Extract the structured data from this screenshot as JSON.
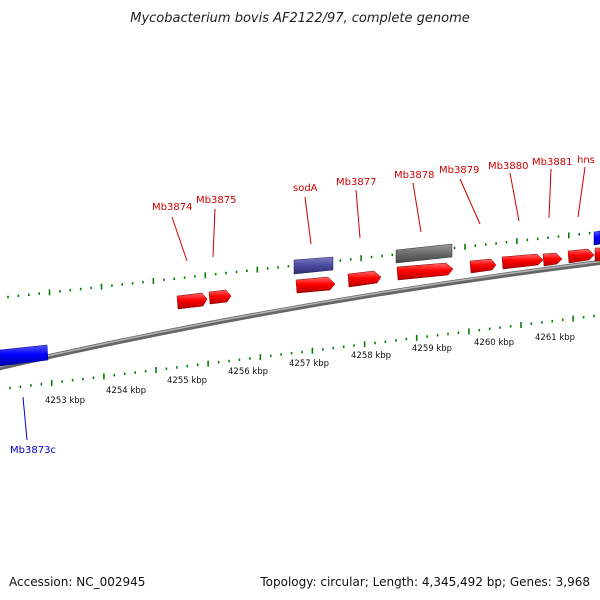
{
  "title": "Mycobacterium bovis AF2122/97, complete genome",
  "footer": {
    "accession": "Accession: NC_002945",
    "summary": "Topology: circular; Length: 4,345,492 bp; Genes: 3,968"
  },
  "colors": {
    "forward_gene": "#ff0000",
    "reverse_gene": "#0000ff",
    "other_feature_purple": "#4a4a9e",
    "other_feature_gray": "#6b6b6b",
    "label_forward": "#cc0000",
    "label_reverse": "#0000cc",
    "backbone": "#8c8c8c",
    "tick": "#0a7a0a"
  },
  "ruler": {
    "unit": "kbp",
    "labels": [
      "4253 kbp",
      "4254 kbp",
      "4255 kbp",
      "4256 kbp",
      "4257 kbp",
      "4258 kbp",
      "4259 kbp",
      "4260 kbp",
      "4261 kbp"
    ]
  },
  "genes": [
    {
      "name": "Mb3873c",
      "strand": "reverse",
      "labelled": true
    },
    {
      "name": "Mb3874",
      "strand": "forward",
      "labelled": true
    },
    {
      "name": "Mb3875",
      "strand": "forward",
      "labelled": true
    },
    {
      "name": "sodA",
      "strand": "forward",
      "labelled": true
    },
    {
      "name": "Mb3877",
      "strand": "forward",
      "labelled": true
    },
    {
      "name": "Mb3878",
      "strand": "forward",
      "labelled": true
    },
    {
      "name": "Mb3879",
      "strand": "forward",
      "labelled": true
    },
    {
      "name": "Mb3880",
      "strand": "forward",
      "labelled": true
    },
    {
      "name": "Mb3881",
      "strand": "forward",
      "labelled": true
    },
    {
      "name": "hns",
      "strand": "forward",
      "labelled": true
    }
  ]
}
